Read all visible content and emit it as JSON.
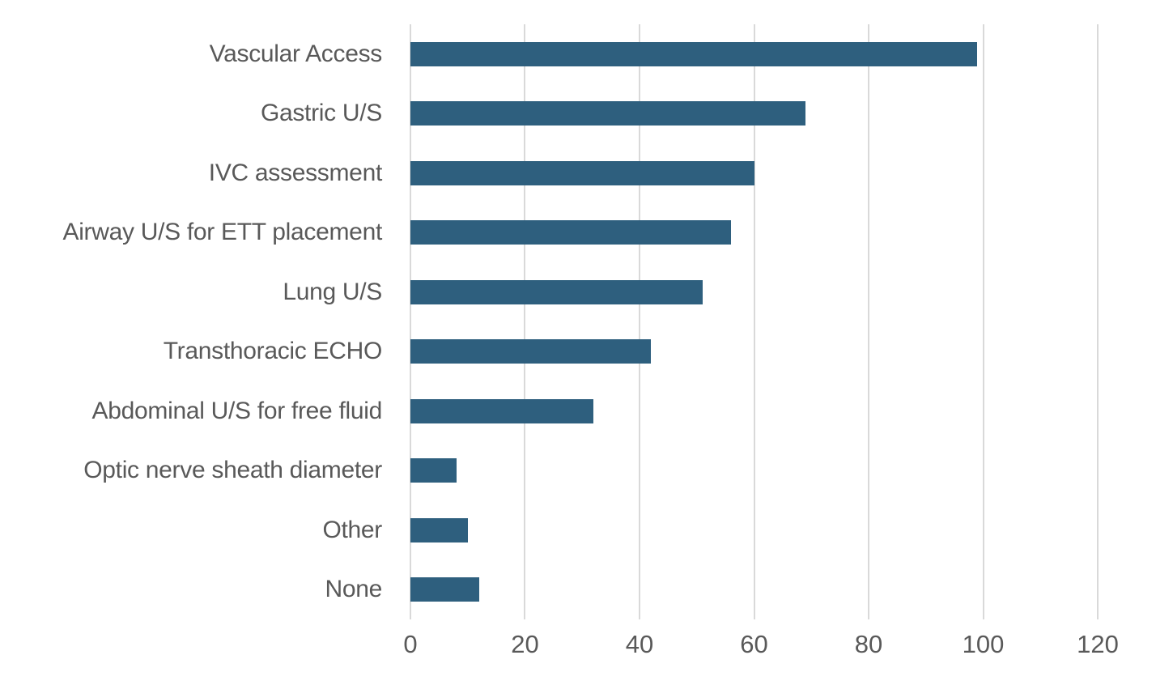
{
  "chart_data": {
    "type": "bar",
    "orientation": "horizontal",
    "title": "",
    "xlabel": "",
    "ylabel": "",
    "categories": [
      "Vascular Access",
      "Gastric U/S",
      "IVC assessment",
      "Airway U/S for ETT placement",
      "Lung U/S",
      "Transthoracic ECHO",
      "Abdominal U/S for free fluid",
      "Optic nerve sheath diameter",
      "Other",
      "None"
    ],
    "values": [
      99,
      69,
      60,
      56,
      51,
      42,
      32,
      8,
      10,
      12
    ],
    "xlim": [
      0,
      120
    ],
    "xticks": [
      0,
      20,
      40,
      60,
      80,
      100,
      120
    ],
    "grid": true,
    "legend": false,
    "colors": {
      "bar": "#2E5F7E",
      "gridline": "#D9D9D9",
      "labels": "#595959",
      "background": "#FFFFFF"
    }
  }
}
